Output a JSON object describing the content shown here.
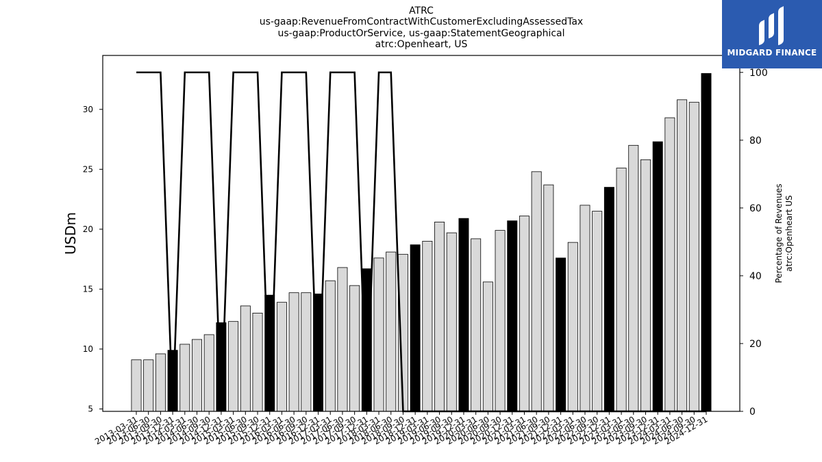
{
  "title_lines": [
    "ATRC",
    "us-gaap:RevenueFromContractWithCustomerExcludingAssessedTax",
    "us-gaap:ProductOrService, us-gaap:StatementGeographical",
    "atrc:Openheart, US"
  ],
  "logo": {
    "text": "MIDGARD FINANCE",
    "color": "#2b5bb0"
  },
  "colors": {
    "bar_fill": "#d9d9d9",
    "bar_highlight": "#000000",
    "line": "#000000"
  },
  "chart_data": {
    "type": "bar",
    "title": "ATRC us-gaap:RevenueFromContractWithCustomerExcludingAssessedTax us-gaap:ProductOrService, us-gaap:StatementGeographical atrc:Openheart, US",
    "ylabel": "USDm",
    "y2label": [
      "Percentage of Revenues",
      "atrc:Openheart US"
    ],
    "ylim": [
      4.8,
      34.5
    ],
    "y2lim": [
      0,
      105
    ],
    "yticks": [
      5,
      10,
      15,
      20,
      25,
      30
    ],
    "y2ticks": [
      0,
      20,
      40,
      60,
      80,
      100
    ],
    "categories": [
      "2013-03-31",
      "2013-06-30",
      "2013-09-30",
      "2013-12-31",
      "2014-03-31",
      "2014-06-30",
      "2014-09-30",
      "2014-12-31",
      "2015-03-31",
      "2015-06-30",
      "2015-09-30",
      "2015-12-31",
      "2016-03-31",
      "2016-06-30",
      "2016-09-30",
      "2016-12-31",
      "2017-03-31",
      "2017-06-30",
      "2017-09-30",
      "2017-12-31",
      "2018-03-31",
      "2018-06-30",
      "2018-09-30",
      "2018-12-31",
      "2019-03-31",
      "2019-06-30",
      "2019-09-30",
      "2019-12-31",
      "2020-03-31",
      "2020-06-30",
      "2020-09-30",
      "2020-12-31",
      "2021-03-31",
      "2021-06-30",
      "2021-09-30",
      "2021-12-31",
      "2022-03-31",
      "2022-06-30",
      "2022-09-30",
      "2022-12-31",
      "2023-03-31",
      "2023-06-30",
      "2023-09-30",
      "2023-12-31",
      "2024-03-31",
      "2024-06-30",
      "2024-09-30",
      "2024-12-31"
    ],
    "series": [
      {
        "name": "USDm",
        "axis": "left",
        "values": [
          9.1,
          9.1,
          9.6,
          9.9,
          10.4,
          10.8,
          11.2,
          12.2,
          12.3,
          13.6,
          13.0,
          14.5,
          13.9,
          14.7,
          14.7,
          14.6,
          15.7,
          16.8,
          15.3,
          16.7,
          17.6,
          18.1,
          17.9,
          18.7,
          19.0,
          20.6,
          19.7,
          20.9,
          19.2,
          15.6,
          19.9,
          20.7,
          21.1,
          24.8,
          23.7,
          17.6,
          18.9,
          22.0,
          21.5,
          23.5,
          25.1,
          27.0,
          25.8,
          27.3,
          29.3,
          30.8,
          30.6,
          33.0
        ],
        "highlight": [
          false,
          false,
          false,
          true,
          false,
          false,
          false,
          true,
          false,
          false,
          false,
          true,
          false,
          false,
          false,
          true,
          false,
          false,
          false,
          true,
          false,
          false,
          false,
          true,
          false,
          false,
          false,
          true,
          false,
          false,
          false,
          true,
          false,
          false,
          false,
          true,
          false,
          false,
          false,
          true,
          false,
          false,
          false,
          true,
          false,
          false,
          false,
          true
        ]
      },
      {
        "name": "Percentage of Revenues atrc:Openheart US",
        "axis": "right",
        "type": "line",
        "values": [
          100,
          100,
          100,
          0,
          100,
          100,
          100,
          0,
          100,
          100,
          100,
          0,
          100,
          100,
          100,
          0,
          100,
          100,
          100,
          0,
          100,
          100,
          0,
          0,
          0,
          0,
          0,
          0,
          0,
          0,
          0,
          0,
          0,
          0,
          0,
          0,
          0,
          0,
          0,
          0,
          0,
          0,
          0,
          0,
          0,
          0,
          0,
          0
        ]
      }
    ],
    "grid": false,
    "legend": "none"
  }
}
